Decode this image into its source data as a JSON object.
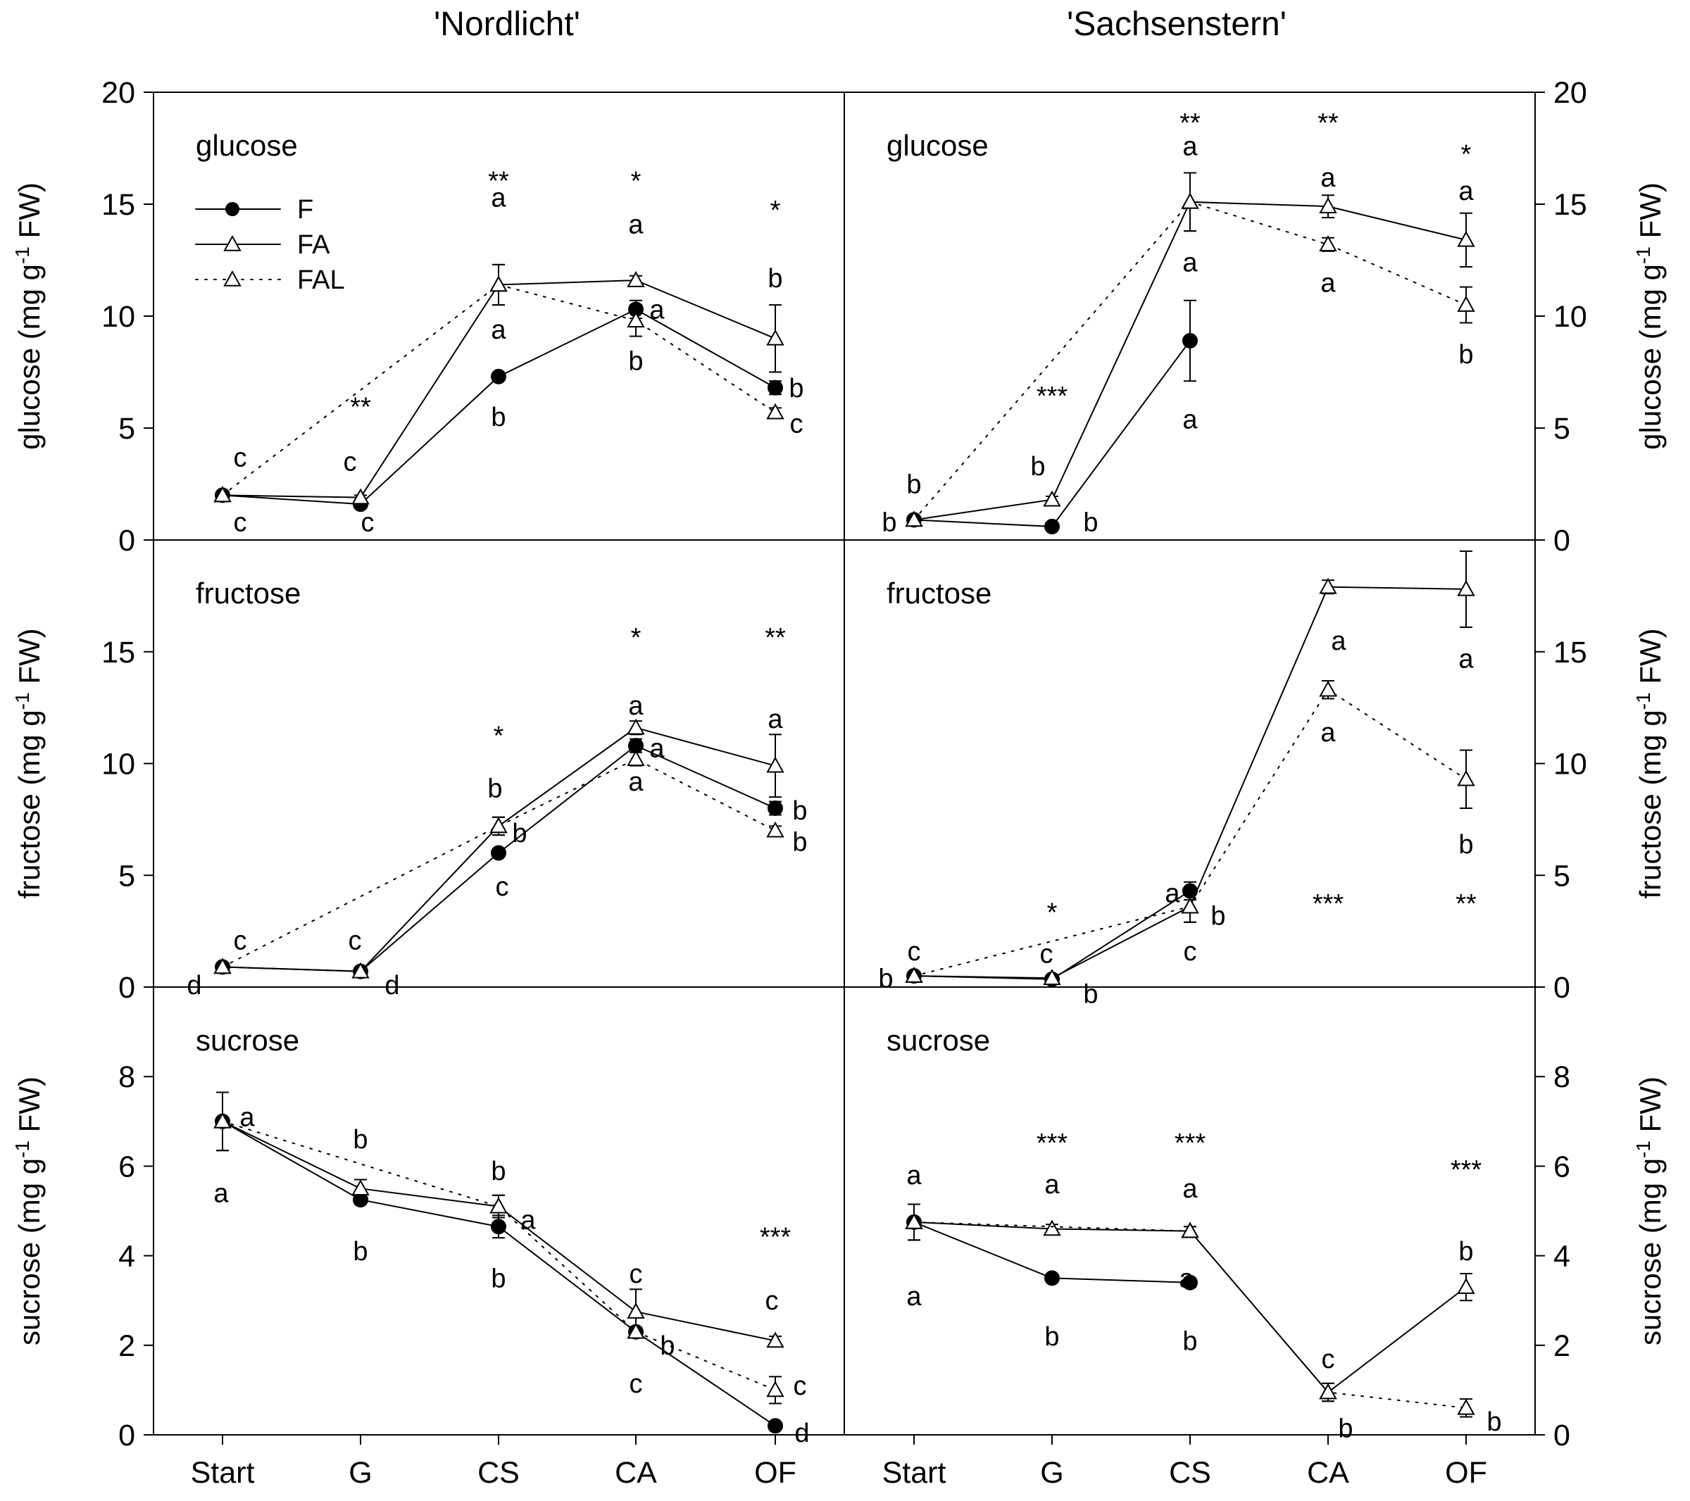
{
  "column_titles": [
    "'Nordlicht'",
    "'Sachsenstern'"
  ],
  "x_categories": [
    "Start",
    "G",
    "CS",
    "CA",
    "OF"
  ],
  "legend": [
    "F",
    "FA",
    "FAL"
  ],
  "colors": {
    "line": "#000000",
    "fill_F": "#000000",
    "fill_open": "#ffffff"
  },
  "chart_data": [
    {
      "type": "line",
      "cultivar": "'Nordlicht'",
      "title": "glucose",
      "ylabel": "glucose (mg g-1 FW)",
      "ylim": [
        0,
        20
      ],
      "yticks": [
        0,
        5,
        10,
        15,
        20
      ],
      "categories": [
        "Start",
        "G",
        "CS",
        "CA",
        "OF"
      ],
      "series": [
        {
          "name": "F",
          "values": [
            2.0,
            1.6,
            7.3,
            10.3,
            6.8
          ],
          "err": [
            0.1,
            0.1,
            0.15,
            0.4,
            0.3
          ]
        },
        {
          "name": "FA",
          "values": [
            2.0,
            1.9,
            11.4,
            11.6,
            9.0
          ],
          "err": [
            0.1,
            0.1,
            0.9,
            0.2,
            1.5
          ]
        },
        {
          "name": "FAL",
          "values": [
            2.0,
            null,
            11.4,
            9.8,
            5.7
          ],
          "err": [
            0.1,
            null,
            0.9,
            0.7,
            0.2
          ]
        }
      ],
      "letters": [
        {
          "cat": 0,
          "y": 3.7,
          "dx": 25,
          "text": "c"
        },
        {
          "cat": 0,
          "y": 0.8,
          "dx": 25,
          "text": "c"
        },
        {
          "cat": 1,
          "y": 3.5,
          "dx": -15,
          "text": "c"
        },
        {
          "cat": 1,
          "y": 0.8,
          "dx": 10,
          "text": "c"
        },
        {
          "cat": 2,
          "y": 15.3,
          "dx": 0,
          "text": "a"
        },
        {
          "cat": 2,
          "y": 9.4,
          "dx": 0,
          "text": "a"
        },
        {
          "cat": 2,
          "y": 5.5,
          "dx": 0,
          "text": "b"
        },
        {
          "cat": 3,
          "y": 14.1,
          "dx": 0,
          "text": "a"
        },
        {
          "cat": 3,
          "y": 10.3,
          "dx": 30,
          "text": "a"
        },
        {
          "cat": 3,
          "y": 8.0,
          "dx": 0,
          "text": "b"
        },
        {
          "cat": 4,
          "y": 11.7,
          "dx": 0,
          "text": "b"
        },
        {
          "cat": 4,
          "y": 6.8,
          "dx": 30,
          "text": "b"
        },
        {
          "cat": 4,
          "y": 5.2,
          "dx": 30,
          "text": "c"
        }
      ],
      "significance": [
        {
          "cat": 1,
          "y": 6.3,
          "text": "**"
        },
        {
          "cat": 2,
          "y": 16.4,
          "text": "**"
        },
        {
          "cat": 3,
          "y": 16.4,
          "text": "*"
        },
        {
          "cat": 4,
          "y": 15.1,
          "text": "*"
        }
      ]
    },
    {
      "type": "line",
      "cultivar": "'Sachsenstern'",
      "title": "glucose",
      "ylabel": "glucose (mg g-1 FW)",
      "ylim": [
        0,
        20
      ],
      "yticks": [
        0,
        5,
        10,
        15,
        20
      ],
      "categories": [
        "Start",
        "G",
        "CS",
        "CA",
        "OF"
      ],
      "series": [
        {
          "name": "F",
          "values": [
            0.9,
            0.6,
            8.9,
            null,
            null
          ],
          "err": [
            0.1,
            0.1,
            1.8,
            null,
            null
          ]
        },
        {
          "name": "FA",
          "values": [
            0.9,
            1.8,
            15.1,
            14.9,
            13.4
          ],
          "err": [
            0.1,
            0.15,
            1.3,
            0.5,
            1.2
          ]
        },
        {
          "name": "FAL",
          "values": [
            0.9,
            null,
            15.1,
            13.2,
            10.5
          ],
          "err": [
            0.1,
            null,
            1.3,
            0.3,
            0.8
          ]
        }
      ],
      "letters": [
        {
          "cat": 0,
          "y": 2.5,
          "dx": 0,
          "text": "b"
        },
        {
          "cat": 0,
          "y": 0.8,
          "dx": -35,
          "text": "b"
        },
        {
          "cat": 1,
          "y": 3.3,
          "dx": -20,
          "text": "b"
        },
        {
          "cat": 1,
          "y": 0.8,
          "dx": 55,
          "text": "b"
        },
        {
          "cat": 2,
          "y": 17.6,
          "dx": 0,
          "text": "a"
        },
        {
          "cat": 2,
          "y": 12.4,
          "dx": 0,
          "text": "a"
        },
        {
          "cat": 2,
          "y": 5.4,
          "dx": 0,
          "text": "a"
        },
        {
          "cat": 3,
          "y": 16.2,
          "dx": 0,
          "text": "a"
        },
        {
          "cat": 3,
          "y": 11.5,
          "dx": 0,
          "text": "a"
        },
        {
          "cat": 4,
          "y": 15.6,
          "dx": 0,
          "text": "a"
        },
        {
          "cat": 4,
          "y": 8.3,
          "dx": 0,
          "text": "b"
        }
      ],
      "significance": [
        {
          "cat": 1,
          "y": 6.8,
          "text": "***"
        },
        {
          "cat": 2,
          "y": 19.0,
          "text": "**"
        },
        {
          "cat": 3,
          "y": 19.0,
          "text": "**"
        },
        {
          "cat": 4,
          "y": 17.6,
          "text": "*"
        }
      ]
    },
    {
      "type": "line",
      "cultivar": "'Nordlicht'",
      "title": "fructose",
      "ylabel": "fructose (mg g-1 FW)",
      "ylim": [
        0,
        20
      ],
      "yticks": [
        0,
        5,
        10,
        15
      ],
      "categories": [
        "Start",
        "G",
        "CS",
        "CA",
        "OF"
      ],
      "series": [
        {
          "name": "F",
          "values": [
            0.9,
            0.7,
            6.0,
            10.8,
            8.0
          ],
          "err": [
            0.05,
            0.05,
            0.15,
            0.3,
            0.3
          ]
        },
        {
          "name": "FA",
          "values": [
            0.9,
            0.7,
            7.2,
            11.6,
            9.9
          ],
          "err": [
            0.05,
            0.05,
            0.4,
            0.3,
            1.4
          ]
        },
        {
          "name": "FAL",
          "values": [
            0.9,
            null,
            7.2,
            10.2,
            7.0
          ],
          "err": [
            0.05,
            null,
            0.4,
            0.3,
            0.2
          ]
        }
      ],
      "letters": [
        {
          "cat": 0,
          "y": 2.1,
          "dx": 25,
          "text": "c"
        },
        {
          "cat": 0,
          "y": 0.1,
          "dx": -40,
          "text": "d"
        },
        {
          "cat": 1,
          "y": 2.1,
          "dx": -8,
          "text": "c"
        },
        {
          "cat": 1,
          "y": 0.1,
          "dx": 45,
          "text": "d"
        },
        {
          "cat": 2,
          "y": 8.9,
          "dx": -5,
          "text": "b"
        },
        {
          "cat": 2,
          "y": 6.9,
          "dx": 30,
          "text": "b"
        },
        {
          "cat": 2,
          "y": 4.5,
          "dx": 5,
          "text": "c"
        },
        {
          "cat": 3,
          "y": 12.6,
          "dx": 0,
          "text": "a"
        },
        {
          "cat": 3,
          "y": 10.7,
          "dx": 30,
          "text": "a"
        },
        {
          "cat": 3,
          "y": 9.2,
          "dx": 0,
          "text": "a"
        },
        {
          "cat": 4,
          "y": 12.0,
          "dx": 0,
          "text": "a"
        },
        {
          "cat": 4,
          "y": 7.9,
          "dx": 35,
          "text": "b"
        },
        {
          "cat": 4,
          "y": 6.5,
          "dx": 35,
          "text": "b"
        }
      ],
      "significance": [
        {
          "cat": 2,
          "y": 11.6,
          "text": "*"
        },
        {
          "cat": 3,
          "y": 16.0,
          "text": "*"
        },
        {
          "cat": 4,
          "y": 16.0,
          "text": "**"
        }
      ]
    },
    {
      "type": "line",
      "cultivar": "'Sachsenstern'",
      "title": "fructose",
      "ylabel": "fructose (mg g-1 FW)",
      "ylim": [
        0,
        20
      ],
      "yticks": [
        0,
        5,
        10,
        15
      ],
      "categories": [
        "Start",
        "G",
        "CS",
        "CA",
        "OF"
      ],
      "series": [
        {
          "name": "F",
          "values": [
            0.5,
            0.35,
            4.3,
            null,
            null
          ],
          "err": [
            0.05,
            0.05,
            0.4,
            null,
            null
          ]
        },
        {
          "name": "FA",
          "values": [
            0.5,
            0.4,
            3.6,
            17.9,
            17.8
          ],
          "err": [
            0.05,
            0.05,
            0.7,
            0.3,
            1.7
          ]
        },
        {
          "name": "FAL",
          "values": [
            0.5,
            null,
            3.6,
            13.3,
            9.3
          ],
          "err": [
            0.05,
            null,
            0.7,
            0.4,
            1.3
          ]
        }
      ],
      "letters": [
        {
          "cat": 0,
          "y": 1.6,
          "dx": 0,
          "text": "c"
        },
        {
          "cat": 0,
          "y": 0.4,
          "dx": -40,
          "text": "b"
        },
        {
          "cat": 1,
          "y": 1.5,
          "dx": -8,
          "text": "c"
        },
        {
          "cat": 1,
          "y": -0.3,
          "dx": 55,
          "text": "b"
        },
        {
          "cat": 2,
          "y": 4.2,
          "dx": -25,
          "text": "a"
        },
        {
          "cat": 2,
          "y": 3.2,
          "dx": 40,
          "text": "b"
        },
        {
          "cat": 2,
          "y": 1.6,
          "dx": 0,
          "text": "c"
        },
        {
          "cat": 3,
          "y": 15.5,
          "dx": 15,
          "text": "a"
        },
        {
          "cat": 3,
          "y": 11.4,
          "dx": 0,
          "text": "a"
        },
        {
          "cat": 4,
          "y": 14.7,
          "dx": 0,
          "text": "a"
        },
        {
          "cat": 4,
          "y": 6.4,
          "dx": 0,
          "text": "b"
        }
      ],
      "significance": [
        {
          "cat": 1,
          "y": 3.7,
          "text": "*"
        },
        {
          "cat": 3,
          "y": 4.1,
          "text": "***"
        },
        {
          "cat": 4,
          "y": 4.1,
          "text": "**"
        }
      ]
    },
    {
      "type": "line",
      "cultivar": "'Nordlicht'",
      "title": "sucrose",
      "ylabel": "sucrose (mg g-1 FW)",
      "ylim": [
        0,
        10
      ],
      "yticks": [
        0,
        2,
        4,
        6,
        8
      ],
      "categories": [
        "Start",
        "G",
        "CS",
        "CA",
        "OF"
      ],
      "series": [
        {
          "name": "F",
          "values": [
            7.0,
            5.25,
            4.65,
            2.3,
            0.2
          ],
          "err": [
            0.65,
            0.1,
            0.25,
            0.1,
            0.05
          ]
        },
        {
          "name": "FA",
          "values": [
            7.0,
            5.5,
            5.1,
            2.75,
            2.1
          ],
          "err": [
            0.65,
            0.2,
            0.25,
            0.5,
            0.1
          ]
        },
        {
          "name": "FAL",
          "values": [
            7.0,
            null,
            5.1,
            2.3,
            1.0
          ],
          "err": [
            0.65,
            null,
            0.25,
            0.1,
            0.3
          ]
        }
      ],
      "letters": [
        {
          "cat": 0,
          "y": 7.1,
          "dx": 35,
          "text": "a"
        },
        {
          "cat": 0,
          "y": 5.4,
          "dx": -2,
          "text": "a"
        },
        {
          "cat": 1,
          "y": 6.6,
          "dx": 0,
          "text": "b"
        },
        {
          "cat": 1,
          "y": 4.1,
          "dx": 0,
          "text": "b"
        },
        {
          "cat": 2,
          "y": 5.9,
          "dx": 0,
          "text": "b"
        },
        {
          "cat": 2,
          "y": 4.8,
          "dx": 42,
          "text": "a"
        },
        {
          "cat": 2,
          "y": 3.5,
          "dx": 0,
          "text": "b"
        },
        {
          "cat": 3,
          "y": 3.6,
          "dx": 0,
          "text": "c"
        },
        {
          "cat": 3,
          "y": 2.0,
          "dx": 45,
          "text": "b"
        },
        {
          "cat": 3,
          "y": 1.15,
          "dx": 0,
          "text": "c"
        },
        {
          "cat": 4,
          "y": 3.0,
          "dx": -5,
          "text": "c"
        },
        {
          "cat": 4,
          "y": 1.1,
          "dx": 35,
          "text": "c"
        },
        {
          "cat": 4,
          "y": 0.05,
          "dx": 38,
          "text": "d"
        }
      ],
      "significance": [
        {
          "cat": 4,
          "y": 4.6,
          "text": "***"
        }
      ]
    },
    {
      "type": "line",
      "cultivar": "'Sachsenstern'",
      "title": "sucrose",
      "ylabel": "sucrose (mg g-1 FW)",
      "ylim": [
        0,
        10
      ],
      "yticks": [
        0,
        2,
        4,
        6,
        8
      ],
      "categories": [
        "Start",
        "G",
        "CS",
        "CA",
        "OF"
      ],
      "series": [
        {
          "name": "F",
          "values": [
            4.75,
            3.5,
            3.4,
            null,
            null
          ],
          "err": [
            0.4,
            0.05,
            0.1,
            null,
            null
          ]
        },
        {
          "name": "FA",
          "values": [
            4.75,
            4.6,
            4.55,
            0.95,
            3.3
          ],
          "err": [
            0.4,
            0.1,
            0.1,
            0.2,
            0.3
          ]
        },
        {
          "name": "FAL",
          "values": [
            4.75,
            null,
            4.55,
            0.95,
            0.6
          ],
          "err": [
            0.4,
            null,
            0.1,
            0.2,
            0.2
          ]
        }
      ],
      "letters": [
        {
          "cat": 0,
          "y": 5.8,
          "dx": 0,
          "text": "a"
        },
        {
          "cat": 0,
          "y": 3.1,
          "dx": 0,
          "text": "a"
        },
        {
          "cat": 1,
          "y": 5.6,
          "dx": 0,
          "text": "a"
        },
        {
          "cat": 1,
          "y": 2.2,
          "dx": 0,
          "text": "b"
        },
        {
          "cat": 2,
          "y": 5.5,
          "dx": 0,
          "text": "a"
        },
        {
          "cat": 2,
          "y": 3.5,
          "dx": -5,
          "text": "a"
        },
        {
          "cat": 2,
          "y": 2.1,
          "dx": 0,
          "text": "b"
        },
        {
          "cat": 3,
          "y": 1.7,
          "dx": 0,
          "text": "c"
        },
        {
          "cat": 3,
          "y": 0.15,
          "dx": 25,
          "text": "b"
        },
        {
          "cat": 4,
          "y": 4.1,
          "dx": 0,
          "text": "b"
        },
        {
          "cat": 4,
          "y": 0.3,
          "dx": 40,
          "text": "b"
        }
      ],
      "significance": [
        {
          "cat": 1,
          "y": 6.7,
          "text": "***"
        },
        {
          "cat": 2,
          "y": 6.7,
          "text": "***"
        },
        {
          "cat": 4,
          "y": 6.1,
          "text": "***"
        }
      ]
    }
  ]
}
